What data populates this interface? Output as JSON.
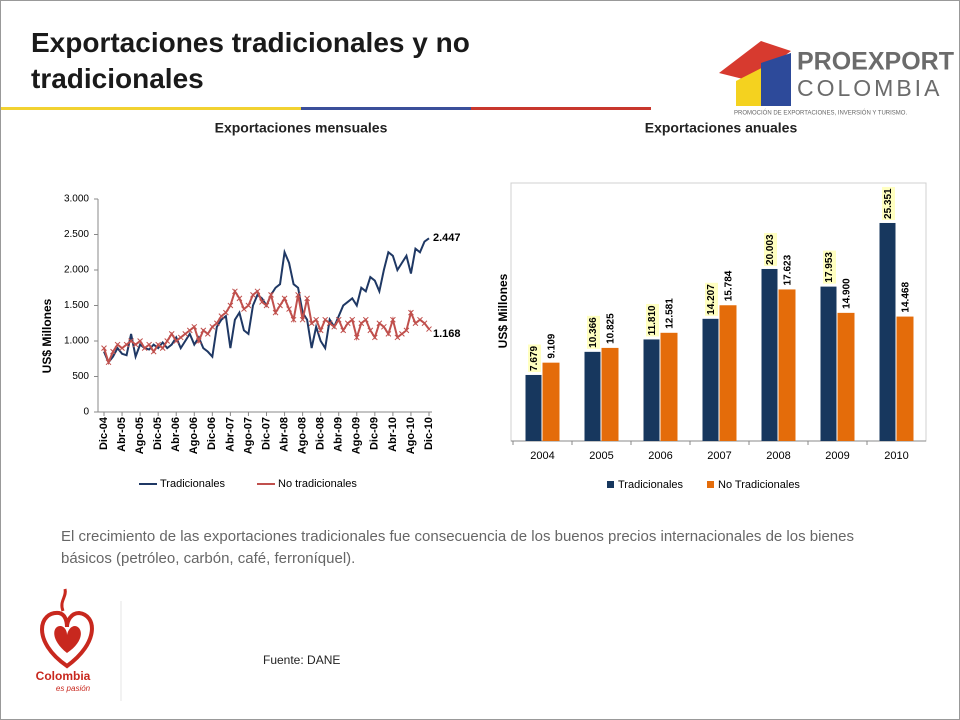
{
  "header": {
    "title": "Exportaciones tradicionales y no tradicionales"
  },
  "logo": {
    "name": "PROEXPORT",
    "country": "COLOMBIA",
    "tagline": "PROMOCIÓN DE EXPORTACIONES, INVERSIÓN Y TURISMO."
  },
  "chart_data": [
    {
      "type": "line",
      "title": "Exportaciones mensuales",
      "y_label": "US$ Millones",
      "categories": [
        "Dic-04",
        null,
        null,
        null,
        "Abr-05",
        null,
        null,
        null,
        "Ago-05",
        null,
        null,
        null,
        "Dic-05",
        null,
        null,
        null,
        "Abr-06",
        null,
        null,
        null,
        "Ago-06",
        null,
        null,
        null,
        "Dic-06",
        null,
        null,
        null,
        "Abr-07",
        null,
        null,
        null,
        "Ago-07",
        null,
        null,
        null,
        "Dic-07",
        null,
        null,
        null,
        "Abr-08",
        null,
        null,
        null,
        "Ago-08",
        null,
        null,
        null,
        "Dic-08",
        null,
        null,
        null,
        "Abr-09",
        null,
        null,
        null,
        "Ago-09",
        null,
        null,
        null,
        "Dic-09",
        null,
        null,
        null,
        "Abr-10",
        null,
        null,
        null,
        "Ago-10",
        null,
        null,
        null,
        "Dic-10"
      ],
      "series": [
        {
          "name": "Tradicionales",
          "color": "#1f3864",
          "values": [
            850,
            700,
            780,
            900,
            820,
            800,
            1100,
            780,
            950,
            900,
            880,
            950,
            900,
            980,
            900,
            950,
            1050,
            900,
            1000,
            1100,
            950,
            1050,
            900,
            850,
            780,
            1200,
            1300,
            1350,
            900,
            1300,
            1400,
            1150,
            1100,
            1500,
            1650,
            1600,
            1500,
            1650,
            1750,
            1800,
            2250,
            2100,
            1800,
            1750,
            1400,
            1300,
            900,
            1200,
            1000,
            900,
            1300,
            1200,
            1350,
            1500,
            1550,
            1600,
            1500,
            1750,
            1700,
            1900,
            1850,
            1700,
            2000,
            2250,
            2200,
            2000,
            2100,
            2200,
            1950,
            2300,
            2250,
            2400,
            2447
          ],
          "value_labels": [
            null,
            null,
            null,
            null,
            null,
            null,
            null,
            null,
            null,
            null,
            null,
            null,
            null,
            null,
            null,
            null,
            null,
            null,
            null,
            null,
            null,
            null,
            null,
            null,
            null,
            null,
            null,
            null,
            null,
            null,
            null,
            null,
            null,
            null,
            null,
            null,
            null,
            null,
            null,
            null,
            null,
            null,
            null,
            null,
            null,
            null,
            null,
            null,
            null,
            null,
            null,
            null,
            null,
            null,
            null,
            null,
            null,
            null,
            null,
            null,
            null,
            null,
            null,
            null,
            null,
            null,
            null,
            null,
            null,
            null,
            null,
            null,
            "2.447"
          ]
        },
        {
          "name": "No tradicionales",
          "color": "#c0504d",
          "marker": "x",
          "values": [
            900,
            700,
            850,
            950,
            900,
            950,
            1000,
            950,
            1000,
            900,
            950,
            850,
            950,
            900,
            1000,
            1100,
            1000,
            1050,
            1100,
            1150,
            1200,
            1000,
            1150,
            1100,
            1200,
            1250,
            1350,
            1400,
            1500,
            1700,
            1600,
            1450,
            1500,
            1650,
            1700,
            1550,
            1500,
            1650,
            1400,
            1500,
            1600,
            1450,
            1300,
            1650,
            1300,
            1600,
            1250,
            1300,
            1150,
            1300,
            1250,
            1200,
            1300,
            1150,
            1250,
            1300,
            1050,
            1250,
            1300,
            1150,
            1050,
            1250,
            1200,
            1100,
            1300,
            1050,
            1100,
            1150,
            1400,
            1250,
            1300,
            1250,
            1168
          ],
          "value_labels": [
            null,
            null,
            null,
            null,
            null,
            null,
            null,
            null,
            null,
            null,
            null,
            null,
            null,
            null,
            null,
            null,
            null,
            null,
            null,
            null,
            null,
            null,
            null,
            null,
            null,
            null,
            null,
            null,
            null,
            null,
            null,
            null,
            null,
            null,
            null,
            null,
            null,
            null,
            null,
            null,
            null,
            null,
            null,
            null,
            null,
            null,
            null,
            null,
            null,
            null,
            null,
            null,
            null,
            null,
            null,
            null,
            null,
            null,
            null,
            null,
            null,
            null,
            null,
            null,
            null,
            null,
            null,
            null,
            null,
            null,
            null,
            null,
            "1.168"
          ]
        }
      ],
      "ylim": [
        0,
        3000
      ],
      "yticks": [
        0,
        500,
        {
          "value": 1000,
          "label": "1.000"
        },
        {
          "value": 1500,
          "label": "1.500"
        },
        {
          "value": 2000,
          "label": "2.000"
        },
        {
          "value": 2500,
          "label": "2.500"
        },
        {
          "value": 3000,
          "label": "3.000"
        }
      ],
      "grid": false,
      "legend": "bottom"
    },
    {
      "type": "bar",
      "title": "Exportaciones anuales",
      "y_label": "US$ Millones",
      "categories": [
        "2004",
        "2005",
        "2006",
        "2007",
        "2008",
        "2009",
        "2010"
      ],
      "series": [
        {
          "name": "Tradicionales",
          "color": "#17375e",
          "values": [
            7679,
            10366,
            11810,
            14207,
            20003,
            17953,
            25351
          ],
          "value_labels": [
            "7.679",
            "10.366",
            "11.810",
            "14.207",
            "20.003",
            "17.953",
            "25.351"
          ]
        },
        {
          "name": "No Tradicionales",
          "color": "#e46c0a",
          "values": [
            9109,
            10825,
            12581,
            15784,
            17623,
            14900,
            14468
          ],
          "value_labels": [
            "9.109",
            "10.825",
            "12.581",
            "15.784",
            "17.623",
            "14.900",
            "14.468"
          ]
        }
      ],
      "ylim": [
        0,
        30000
      ],
      "grid": false,
      "legend": "bottom"
    }
  ],
  "body": {
    "text": "El crecimiento de las exportaciones tradicionales fue consecuencia de los buenos precios internacionales de los bienes básicos (petróleo, carbón, café, ferroníquel)."
  },
  "source": "Fuente: DANE",
  "brand": {
    "name": "Colombia",
    "tagline": "es pasión"
  }
}
